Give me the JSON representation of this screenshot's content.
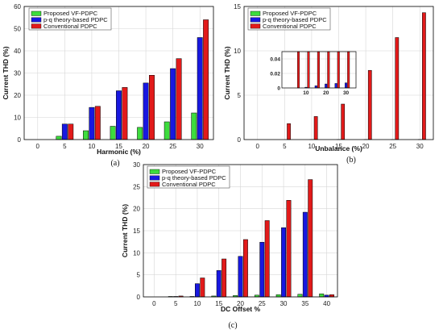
{
  "colors": {
    "vf": "#3ddc3d",
    "pq": "#1818e0",
    "conv": "#e21a1a"
  },
  "chart_data": [
    {
      "type": "bar",
      "caption": "(a)",
      "xlabel": "Harmonic (%)",
      "ylabel": "Current THD (%)",
      "categories": [
        "0",
        "5",
        "10",
        "15",
        "20",
        "25",
        "30"
      ],
      "ylim": [
        0,
        60
      ],
      "yticks": [
        0,
        10,
        20,
        30,
        40,
        50,
        60
      ],
      "grid": true,
      "legend": "top-left",
      "series": [
        {
          "name": "Proposed VF-PDPC",
          "values": [
            0,
            1.5,
            4,
            6,
            5.5,
            8,
            12
          ]
        },
        {
          "name": "p-q theory-based PDPC",
          "values": [
            0,
            7,
            14.5,
            22,
            25.5,
            32,
            46
          ]
        },
        {
          "name": "Conventional PDPC",
          "values": [
            0,
            7,
            15,
            23.5,
            29,
            36.5,
            54
          ]
        }
      ]
    },
    {
      "type": "bar",
      "caption": "(b)",
      "xlabel": "Unbalance (%)",
      "ylabel": "Current THD (%)",
      "categories": [
        "0",
        "5",
        "10",
        "15",
        "20",
        "25",
        "30"
      ],
      "ylim": [
        0,
        15
      ],
      "yticks": [
        0,
        5,
        10,
        15
      ],
      "grid": true,
      "legend": "top-left",
      "series": [
        {
          "name": "Proposed VF-PDPC",
          "values": [
            0,
            0,
            0,
            0,
            0,
            0,
            0
          ]
        },
        {
          "name": "p-q theory-based PDPC",
          "values": [
            0,
            0,
            0.001,
            0.003,
            0.0055,
            0.0062,
            0.007
          ]
        },
        {
          "name": "Conventional PDPC",
          "values": [
            0,
            1.8,
            2.6,
            4.0,
            7.8,
            11.5,
            14.3
          ]
        }
      ],
      "inset": {
        "xticks": [
          10,
          20,
          30
        ],
        "yticks": [
          0,
          0.02,
          0.04
        ],
        "ylim": [
          0,
          0.05
        ]
      }
    },
    {
      "type": "bar",
      "caption": "(c)",
      "xlabel": "DC Offset %",
      "ylabel": "Current THD (%)",
      "categories": [
        "0",
        "5",
        "10",
        "15",
        "20",
        "25",
        "30",
        "35",
        "40"
      ],
      "ylim": [
        0,
        30
      ],
      "yticks": [
        0,
        5,
        10,
        15,
        20,
        25,
        30
      ],
      "grid": true,
      "legend": "top-left",
      "series": [
        {
          "name": "Proposed VF-PDPC",
          "values": [
            0,
            0.1,
            0.1,
            0.2,
            0.3,
            0.4,
            0.5,
            0.6,
            0.7
          ]
        },
        {
          "name": "p-q theory-based PDPC",
          "values": [
            0,
            0.1,
            3.0,
            6.0,
            9.2,
            12.4,
            15.7,
            19.2,
            0.4
          ]
        },
        {
          "name": "Conventional PDPC",
          "values": [
            0,
            0.2,
            4.3,
            8.6,
            13.0,
            17.3,
            21.9,
            26.6,
            0.5
          ]
        }
      ]
    }
  ]
}
